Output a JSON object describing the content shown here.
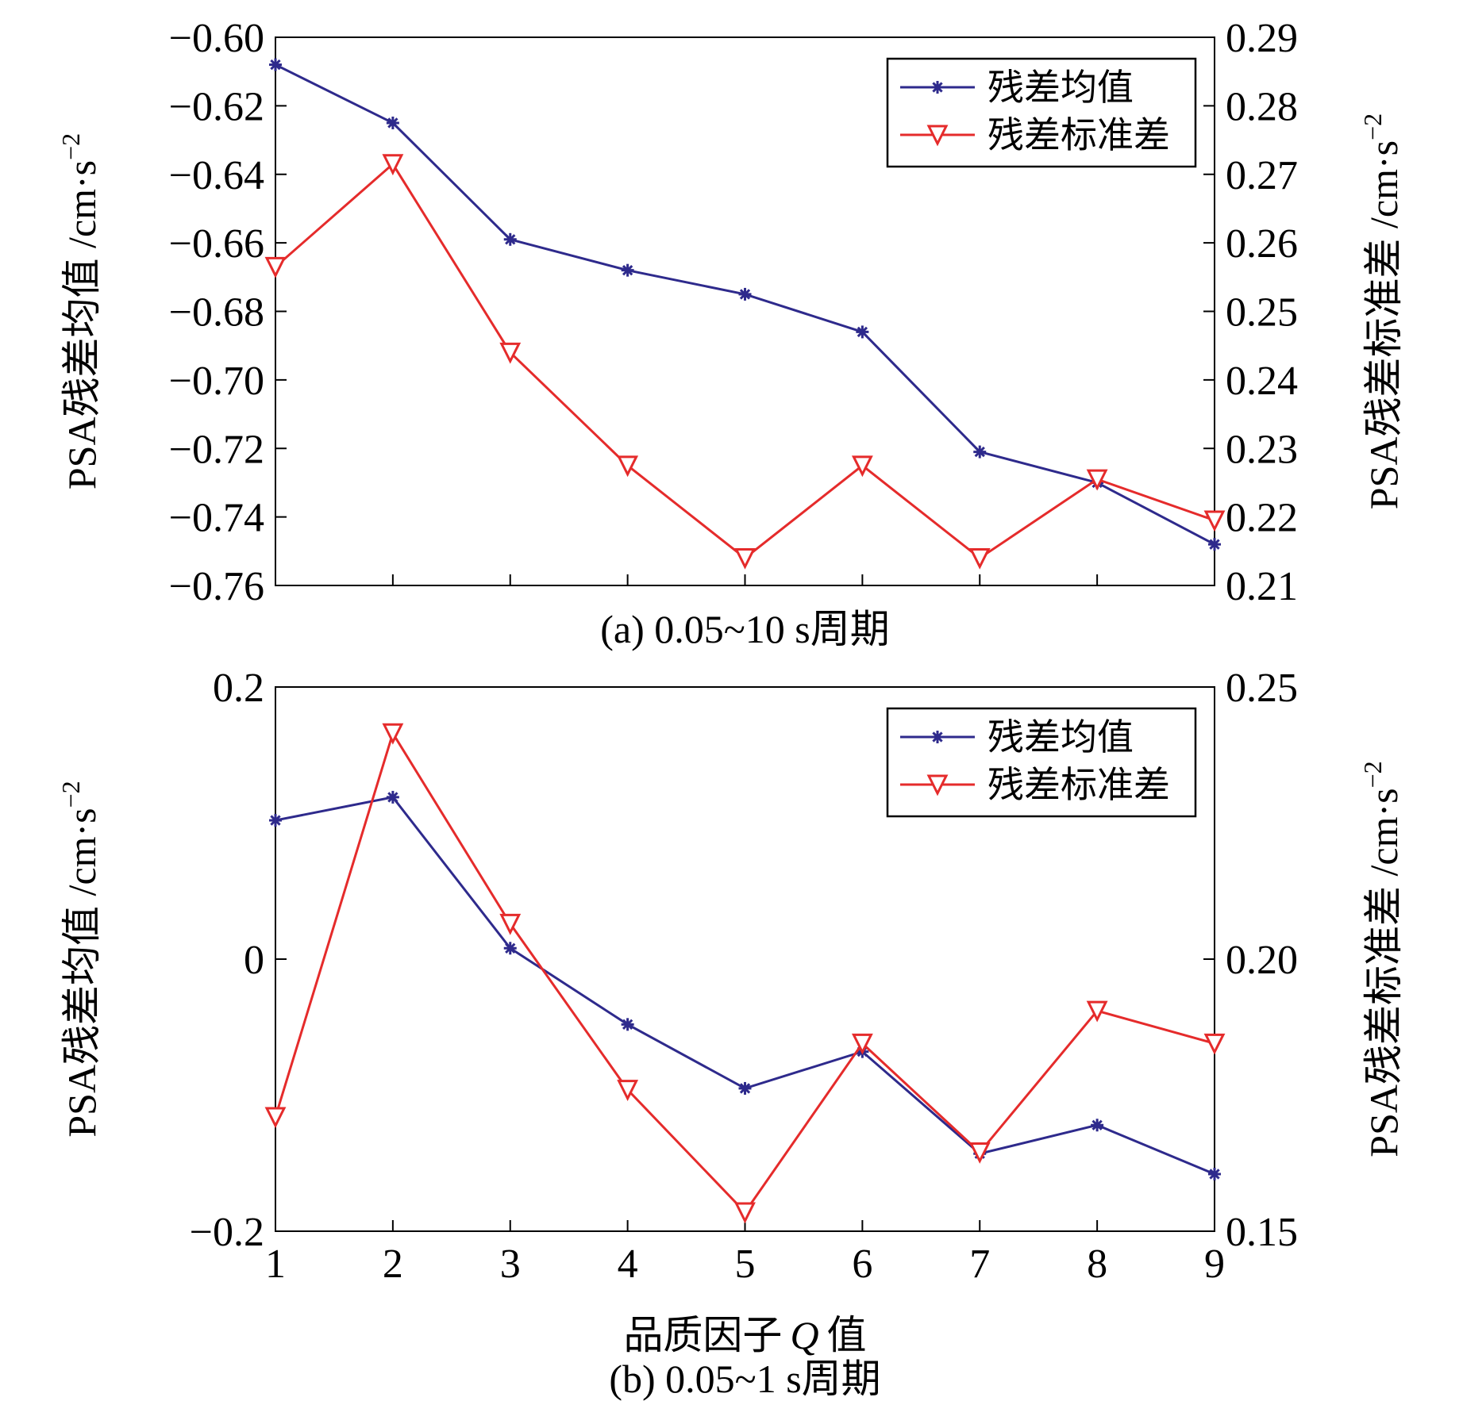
{
  "colors": {
    "mean": "#2e2a8c",
    "std": "#e52b2b"
  },
  "chart_data": [
    {
      "type": "line",
      "title": "",
      "caption": "(a) 0.05~10 s周期",
      "x": [
        1,
        2,
        3,
        4,
        5,
        6,
        7,
        8,
        9
      ],
      "xlim": [
        1,
        9
      ],
      "x_tick_labels_shown": false,
      "ylabel_left_text": "PSA残差均值 /cm·s",
      "ylabel_right_text": "PSA残差标准差 /cm·s",
      "ylabel_unit_exponent": "−2",
      "ylim_left": [
        -0.76,
        -0.6
      ],
      "ylim_right": [
        0.21,
        0.29
      ],
      "yticks_left": [
        "−0.60",
        "−0.62",
        "−0.64",
        "−0.66",
        "−0.68",
        "−0.70",
        "−0.72",
        "−0.74",
        "−0.76"
      ],
      "yticks_left_values": [
        -0.6,
        -0.62,
        -0.64,
        -0.66,
        -0.68,
        -0.7,
        -0.72,
        -0.74,
        -0.76
      ],
      "yticks_right": [
        "0.29",
        "0.28",
        "0.27",
        "0.26",
        "0.25",
        "0.24",
        "0.23",
        "0.22",
        "0.21"
      ],
      "yticks_right_values": [
        0.29,
        0.28,
        0.27,
        0.26,
        0.25,
        0.24,
        0.23,
        0.22,
        0.21
      ],
      "legend_position": "top-right",
      "series": [
        {
          "name": "残差均值",
          "axis": "left",
          "marker": "asterisk",
          "values": [
            -0.608,
            -0.625,
            -0.659,
            -0.668,
            -0.675,
            -0.686,
            -0.721,
            -0.73,
            -0.748
          ]
        },
        {
          "name": "残差标准差",
          "axis": "right",
          "marker": "triangle-down",
          "values": [
            0.2565,
            0.2715,
            0.244,
            0.2275,
            0.214,
            0.2275,
            0.214,
            0.2255,
            0.2195
          ]
        }
      ]
    },
    {
      "type": "line",
      "title": "",
      "caption": "(b) 0.05~1 s周期",
      "x": [
        1,
        2,
        3,
        4,
        5,
        6,
        7,
        8,
        9
      ],
      "xlim": [
        1,
        9
      ],
      "x_tick_labels_shown": true,
      "xticks": [
        "1",
        "2",
        "3",
        "4",
        "5",
        "6",
        "7",
        "8",
        "9"
      ],
      "xlabel_text": "品质因子",
      "xlabel_symbol": "Q",
      "xlabel_suffix": "值",
      "ylabel_left_text": "PSA残差均值 /cm·s",
      "ylabel_right_text": "PSA残差标准差 /cm·s",
      "ylabel_unit_exponent": "−2",
      "ylim_left": [
        -0.2,
        0.2
      ],
      "ylim_right": [
        0.15,
        0.25
      ],
      "yticks_left": [
        "0.2",
        "0",
        "−0.2"
      ],
      "yticks_left_values": [
        0.2,
        0,
        -0.2
      ],
      "yticks_right": [
        "0.25",
        "0.20",
        "0.15"
      ],
      "yticks_right_values": [
        0.25,
        0.2,
        0.15
      ],
      "legend_position": "top-right",
      "series": [
        {
          "name": "残差均值",
          "axis": "left",
          "marker": "asterisk",
          "values": [
            0.102,
            0.119,
            0.008,
            -0.048,
            -0.095,
            -0.068,
            -0.143,
            -0.122,
            -0.158
          ]
        },
        {
          "name": "残差标准差",
          "axis": "right",
          "marker": "triangle-down",
          "values": [
            0.171,
            0.2415,
            0.2065,
            0.176,
            0.1535,
            0.1845,
            0.1645,
            0.1905,
            0.1845
          ]
        }
      ]
    }
  ]
}
